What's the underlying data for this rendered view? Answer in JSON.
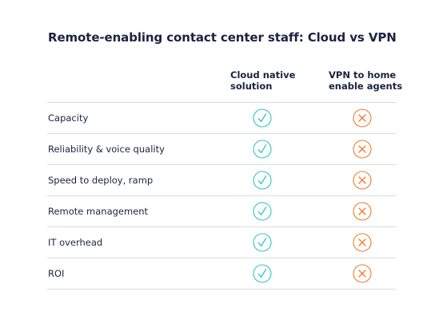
{
  "title": "Remote-enabling contact center staff: Cloud vs VPN",
  "columns": {
    "cloud": {
      "line1": "Cloud native",
      "line2": "solution"
    },
    "vpn": {
      "line1": "VPN to home",
      "line2": "enable agents"
    }
  },
  "rows": [
    {
      "label": "Capacity",
      "cloud": "check-icon",
      "vpn": "cross-icon"
    },
    {
      "label": "Reliability & voice quality",
      "cloud": "check-icon",
      "vpn": "cross-icon"
    },
    {
      "label": "Speed to deploy, ramp",
      "cloud": "check-icon",
      "vpn": "cross-icon"
    },
    {
      "label": "Remote management",
      "cloud": "check-icon",
      "vpn": "cross-icon"
    },
    {
      "label": "IT overhead",
      "cloud": "check-icon",
      "vpn": "cross-icon"
    },
    {
      "label": "ROI",
      "cloud": "check-icon",
      "vpn": "cross-icon"
    }
  ],
  "colors": {
    "check": "#2ec4c4",
    "cross": "#f07a2a",
    "text": "#1c2340",
    "divider": "#d9dbe0"
  }
}
